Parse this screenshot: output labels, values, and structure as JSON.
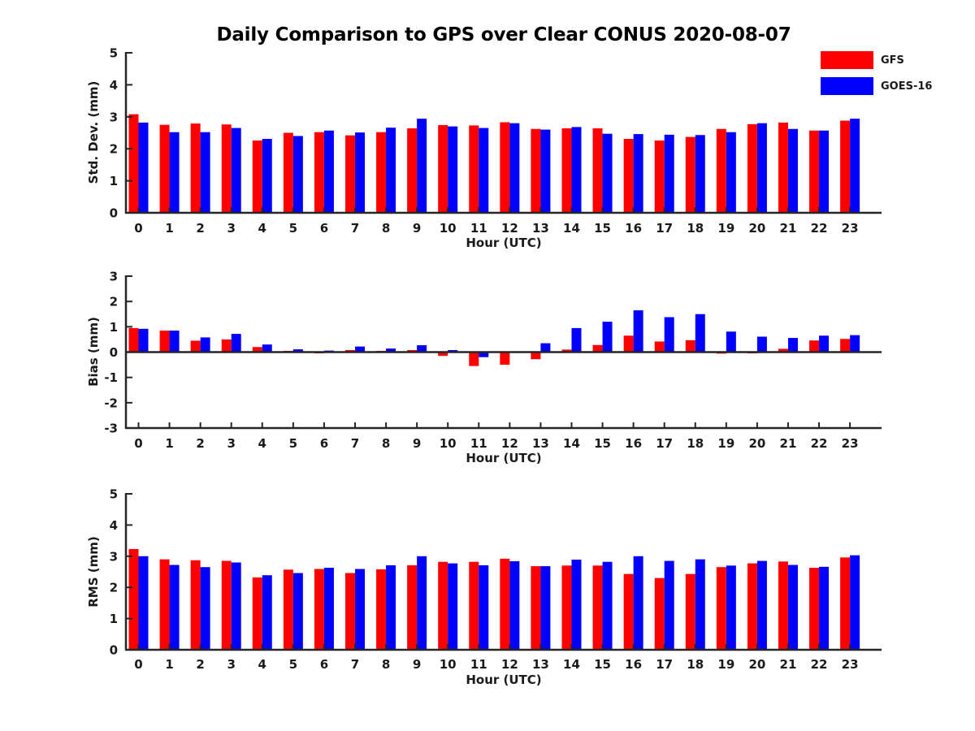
{
  "title": "Daily Comparison to GPS over Clear CONUS 2020-08-07",
  "legend": {
    "items": [
      {
        "label": "GFS",
        "color": "#ff0000"
      },
      {
        "label": "GOES-16",
        "color": "#0000ff"
      }
    ]
  },
  "colors": {
    "gfs": "#ff0000",
    "goes16": "#0000ff",
    "axis": "#262626",
    "text": "#1a1a1a"
  },
  "chart_data": [
    {
      "type": "bar",
      "id": "std_dev",
      "ylabel": "Std. Dev. (mm)",
      "xlabel": "Hour (UTC)",
      "ylim": [
        0,
        5
      ],
      "yticks": [
        0,
        1,
        2,
        3,
        4,
        5
      ],
      "grid": false,
      "legend_position": "top-right-outside",
      "categories": [
        "0",
        "1",
        "2",
        "3",
        "4",
        "5",
        "6",
        "7",
        "8",
        "9",
        "10",
        "11",
        "12",
        "13",
        "14",
        "15",
        "16",
        "17",
        "18",
        "19",
        "20",
        "21",
        "22",
        "23"
      ],
      "series": [
        {
          "name": "GFS",
          "color": "#ff0000",
          "values": [
            3.08,
            2.75,
            2.79,
            2.76,
            2.26,
            2.5,
            2.52,
            2.42,
            2.52,
            2.64,
            2.74,
            2.73,
            2.83,
            2.62,
            2.64,
            2.64,
            2.31,
            2.26,
            2.37,
            2.62,
            2.77,
            2.82,
            2.57,
            2.88
          ]
        },
        {
          "name": "GOES-16",
          "color": "#0000ff",
          "values": [
            2.82,
            2.52,
            2.52,
            2.65,
            2.31,
            2.4,
            2.57,
            2.51,
            2.66,
            2.94,
            2.7,
            2.65,
            2.8,
            2.6,
            2.68,
            2.47,
            2.46,
            2.44,
            2.43,
            2.52,
            2.8,
            2.62,
            2.57,
            2.94
          ]
        }
      ]
    },
    {
      "type": "bar",
      "id": "bias",
      "ylabel": "Bias (mm)",
      "xlabel": "Hour (UTC)",
      "ylim": [
        -3,
        3
      ],
      "yticks": [
        -3,
        -2,
        -1,
        0,
        1,
        2,
        3
      ],
      "grid": false,
      "categories": [
        "0",
        "1",
        "2",
        "3",
        "4",
        "5",
        "6",
        "7",
        "8",
        "9",
        "10",
        "11",
        "12",
        "13",
        "14",
        "15",
        "16",
        "17",
        "18",
        "19",
        "20",
        "21",
        "22",
        "23"
      ],
      "series": [
        {
          "name": "GFS",
          "color": "#ff0000",
          "values": [
            0.95,
            0.85,
            0.45,
            0.5,
            0.2,
            0.05,
            -0.05,
            0.08,
            0.05,
            0.08,
            -0.15,
            -0.55,
            -0.5,
            -0.28,
            0.1,
            0.28,
            0.65,
            0.42,
            0.47,
            -0.06,
            -0.05,
            0.13,
            0.46,
            0.52
          ]
        },
        {
          "name": "GOES-16",
          "color": "#0000ff",
          "values": [
            0.92,
            0.85,
            0.58,
            0.72,
            0.3,
            0.11,
            0.06,
            0.22,
            0.14,
            0.27,
            0.08,
            -0.2,
            0.02,
            0.35,
            0.95,
            1.2,
            1.65,
            1.38,
            1.5,
            0.81,
            0.61,
            0.56,
            0.65,
            0.67
          ]
        }
      ]
    },
    {
      "type": "bar",
      "id": "rms",
      "ylabel": "RMS (mm)",
      "xlabel": "Hour (UTC)",
      "ylim": [
        0,
        5
      ],
      "yticks": [
        0,
        1,
        2,
        3,
        4,
        5
      ],
      "grid": false,
      "categories": [
        "0",
        "1",
        "2",
        "3",
        "4",
        "5",
        "6",
        "7",
        "8",
        "9",
        "10",
        "11",
        "12",
        "13",
        "14",
        "15",
        "16",
        "17",
        "18",
        "19",
        "20",
        "21",
        "22",
        "23"
      ],
      "series": [
        {
          "name": "GFS",
          "color": "#ff0000",
          "values": [
            3.23,
            2.9,
            2.87,
            2.85,
            2.32,
            2.57,
            2.59,
            2.46,
            2.58,
            2.71,
            2.82,
            2.82,
            2.92,
            2.68,
            2.7,
            2.7,
            2.43,
            2.3,
            2.43,
            2.65,
            2.77,
            2.83,
            2.63,
            2.96
          ]
        },
        {
          "name": "GOES-16",
          "color": "#0000ff",
          "values": [
            3.0,
            2.72,
            2.65,
            2.8,
            2.39,
            2.46,
            2.63,
            2.59,
            2.71,
            3.0,
            2.77,
            2.71,
            2.84,
            2.68,
            2.89,
            2.82,
            3.0,
            2.85,
            2.9,
            2.7,
            2.85,
            2.72,
            2.66,
            3.03
          ]
        }
      ]
    }
  ]
}
